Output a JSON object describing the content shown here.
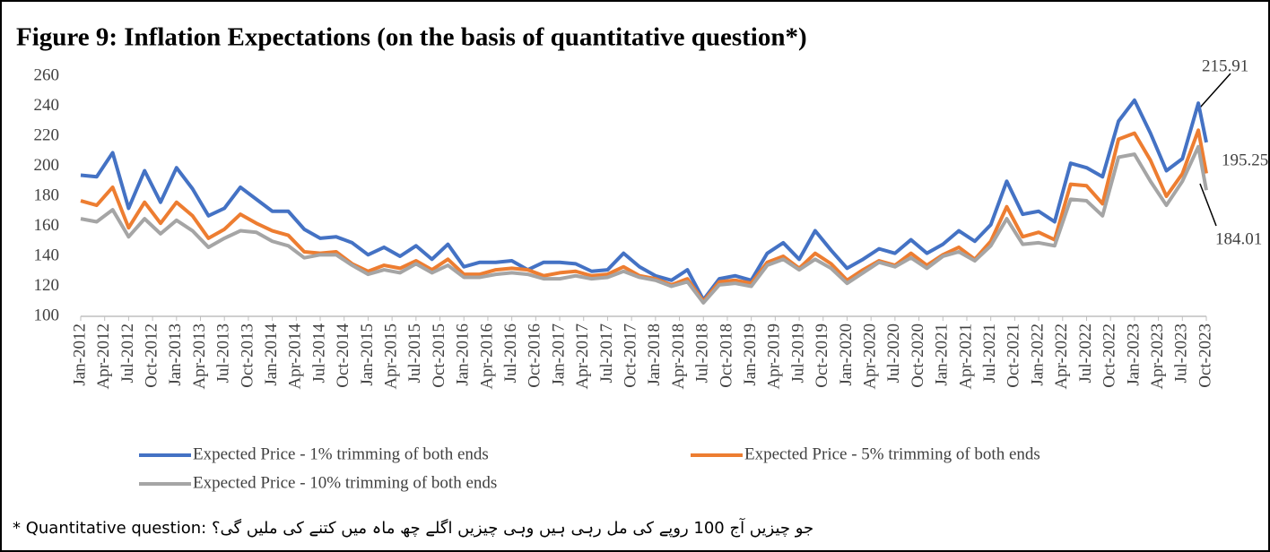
{
  "chart_data": {
    "type": "line",
    "title": "Figure 9: Inflation Expectations (on the basis of quantitative question*)",
    "footnote": "* Quantitative question: جو چیزیں آج 100 روپے کی مل رہی ہیں وہی چیزیں اگلے چھ ماہ میں کتنے کی ملیں گی؟",
    "x": [
      "Jan-2012",
      "Mar-2012",
      "May-2012",
      "Jul-2012",
      "Sep-2012",
      "Nov-2012",
      "Jan-2013",
      "Mar-2013",
      "May-2013",
      "Jul-2013",
      "Sep-2013",
      "Nov-2013",
      "Jan-2014",
      "Mar-2014",
      "May-2014",
      "Jul-2014",
      "Sep-2014",
      "Nov-2014",
      "Jan-2015",
      "Mar-2015",
      "May-2015",
      "Jul-2015",
      "Sep-2015",
      "Nov-2015",
      "Jan-2016",
      "Mar-2016",
      "May-2016",
      "Jul-2016",
      "Sep-2016",
      "Nov-2016",
      "Jan-2017",
      "Mar-2017",
      "May-2017",
      "Jul-2017",
      "Sep-2017",
      "Nov-2017",
      "Jan-2018",
      "Mar-2018",
      "May-2018",
      "Jul-2018",
      "Sep-2018",
      "Nov-2018",
      "Jan-2019",
      "Mar-2019",
      "May-2019",
      "Jul-2019",
      "Sep-2019",
      "Nov-2019",
      "Jan-2020",
      "Mar-2020",
      "May-2020",
      "Jul-2020",
      "Sep-2020",
      "Nov-2020",
      "Jan-2021",
      "Mar-2021",
      "May-2021",
      "Jul-2021",
      "Sep-2021",
      "Nov-2021",
      "Jan-2022",
      "Mar-2022",
      "May-2022",
      "Jul-2022",
      "Sep-2022",
      "Nov-2022",
      "Jan-2023",
      "Mar-2023",
      "May-2023",
      "Jul-2023",
      "Sep-2023",
      "Oct-2023"
    ],
    "series": [
      {
        "name": "Expected Price - 1% trimming of both ends",
        "color": "#4472c4",
        "values": [
          194,
          193,
          209,
          172,
          197,
          176,
          199,
          185,
          167,
          172,
          186,
          178,
          170,
          170,
          158,
          152,
          153,
          149,
          141,
          146,
          140,
          147,
          138,
          148,
          133,
          136,
          136,
          137,
          131,
          136,
          136,
          135,
          130,
          131,
          142,
          133,
          127,
          124,
          131,
          111,
          125,
          127,
          124,
          142,
          149,
          138,
          157,
          144,
          132,
          138,
          145,
          142,
          151,
          142,
          148,
          157,
          150,
          161,
          190,
          168,
          170,
          163,
          202,
          199,
          193,
          230,
          244,
          222,
          197,
          205,
          242,
          215.91
        ]
      },
      {
        "name": "Expected Price - 5% trimming of both ends",
        "color": "#ed7d31",
        "values": [
          177,
          174,
          186,
          159,
          176,
          162,
          176,
          167,
          152,
          158,
          168,
          162,
          157,
          154,
          143,
          142,
          143,
          135,
          130,
          134,
          132,
          137,
          131,
          138,
          128,
          128,
          131,
          132,
          131,
          127,
          129,
          130,
          127,
          128,
          133,
          127,
          125,
          121,
          125,
          110,
          123,
          124,
          122,
          136,
          140,
          132,
          142,
          135,
          124,
          131,
          137,
          134,
          142,
          134,
          141,
          146,
          138,
          150,
          173,
          153,
          156,
          151,
          188,
          187,
          175,
          218,
          222,
          204,
          180,
          195,
          224,
          195.25
        ]
      },
      {
        "name": "Expected Price - 10% trimming of both ends",
        "color": "#a5a5a5",
        "values": [
          165,
          163,
          171,
          153,
          165,
          155,
          164,
          157,
          146,
          152,
          157,
          156,
          150,
          147,
          139,
          141,
          141,
          134,
          128,
          131,
          129,
          135,
          129,
          134,
          126,
          126,
          128,
          129,
          128,
          125,
          125,
          127,
          125,
          126,
          130,
          126,
          124,
          120,
          123,
          109,
          121,
          122,
          120,
          134,
          138,
          131,
          138,
          132,
          122,
          129,
          136,
          133,
          139,
          132,
          140,
          143,
          137,
          147,
          165,
          148,
          149,
          147,
          178,
          177,
          167,
          206,
          208,
          190,
          174,
          190,
          213,
          184.01
        ]
      }
    ],
    "xlim": [
      "Jan-2012",
      "Oct-2023"
    ],
    "xticks": [
      "Jan-2012",
      "Apr-2012",
      "Jul-2012",
      "Oct-2012",
      "Jan-2013",
      "Apr-2013",
      "Jul-2013",
      "Oct-2013",
      "Jan-2014",
      "Apr-2014",
      "Jul-2014",
      "Oct-2014",
      "Jan-2015",
      "Apr-2015",
      "Jul-2015",
      "Oct-2015",
      "Jan-2016",
      "Apr-2016",
      "Jul-2016",
      "Oct-2016",
      "Jan-2017",
      "Apr-2017",
      "Jul-2017",
      "Oct-2017",
      "Jan-2018",
      "Apr-2018",
      "Jul-2018",
      "Oct-2018",
      "Jan-2019",
      "Apr-2019",
      "Jul-2019",
      "Oct-2019",
      "Jan-2020",
      "Apr-2020",
      "Jul-2020",
      "Oct-2020",
      "Jan-2021",
      "Apr-2021",
      "Jul-2021",
      "Oct-2021",
      "Jan-2022",
      "Apr-2022",
      "Jul-2022",
      "Oct-2022",
      "Jan-2023",
      "Apr-2023",
      "Jul-2023",
      "Oct-2023"
    ],
    "ylim": [
      100,
      260
    ],
    "yticks": [
      100,
      120,
      140,
      160,
      180,
      200,
      220,
      240,
      260
    ],
    "grid": false
  }
}
